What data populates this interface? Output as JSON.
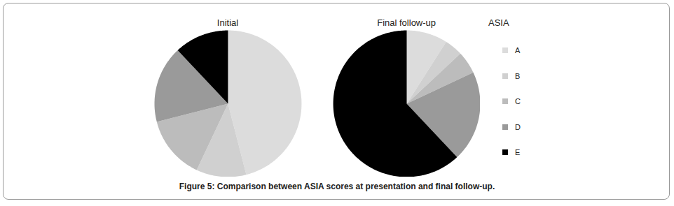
{
  "chart_data": {
    "type": "pie",
    "title": "Figure 5: Comparison between ASIA scores at presentation and final follow-up.",
    "legend_title": "ASIA",
    "legend": "right",
    "categories": [
      "A",
      "B",
      "C",
      "D",
      "E"
    ],
    "colors": [
      "#dcdcdc",
      "#d0d0d0",
      "#bcbcbc",
      "#9a9a9a",
      "#000000"
    ],
    "series": [
      {
        "name": "Initial",
        "values": [
          46,
          11,
          14,
          17,
          12
        ]
      },
      {
        "name": "Final follow-up",
        "values": [
          9,
          4,
          5,
          20,
          62
        ]
      }
    ]
  }
}
